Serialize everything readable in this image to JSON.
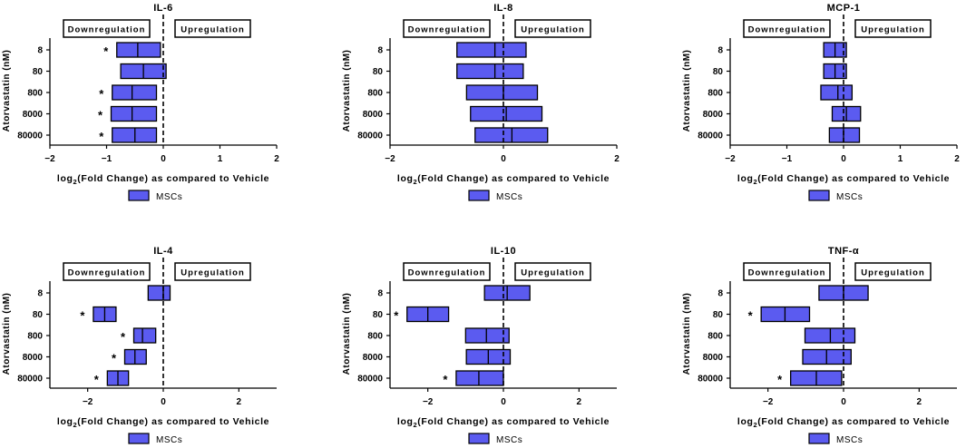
{
  "figure": {
    "colors": {
      "bar_fill": "#5b5bf0",
      "bar_stroke": "#000000",
      "background": "#ffffff"
    }
  },
  "chart_data": [
    {
      "type": "bar",
      "orientation": "horizontal-floating",
      "title": "IL-6",
      "xlabel_main": "log",
      "xlabel_sub": "2",
      "xlabel_rest": "(Fold Change) as compared to Vehicle",
      "ylabel": "Atorvastatin (nM)",
      "categories": [
        "8",
        "80",
        "800",
        "8000",
        "80000"
      ],
      "series": [
        {
          "name": "MSCs",
          "min": [
            -0.82,
            -0.75,
            -0.9,
            -0.92,
            -0.9
          ],
          "mean": [
            -0.45,
            -0.35,
            -0.55,
            -0.55,
            -0.5
          ],
          "max": [
            -0.05,
            0.05,
            -0.12,
            -0.12,
            -0.12
          ]
        }
      ],
      "significant": [
        true,
        false,
        true,
        true,
        true
      ],
      "xlim": [
        -2,
        2
      ],
      "xticks": [
        "-2",
        "-1",
        "0",
        "1",
        "2"
      ],
      "down_label": "Downregulation",
      "up_label": "Upregulation",
      "star": "*",
      "legend": "MSCs"
    },
    {
      "type": "bar",
      "orientation": "horizontal-floating",
      "title": "IL-8",
      "xlabel_main": "log",
      "xlabel_sub": "2",
      "xlabel_rest": "(Fold Change) as compared to Vehicle",
      "ylabel": "Atorvastatin (nM)",
      "categories": [
        "8",
        "80",
        "800",
        "8000",
        "80000"
      ],
      "series": [
        {
          "name": "MSCs",
          "min": [
            -0.82,
            -0.82,
            -0.65,
            -0.58,
            -0.5
          ],
          "mean": [
            -0.15,
            -0.15,
            0.0,
            0.05,
            0.15
          ],
          "max": [
            0.4,
            0.35,
            0.6,
            0.68,
            0.78
          ]
        }
      ],
      "significant": [
        false,
        false,
        false,
        false,
        false
      ],
      "xlim": [
        -2,
        2
      ],
      "xticks": [
        "-2",
        "0",
        "2"
      ],
      "down_label": "Downregulation",
      "up_label": "Upregulation",
      "star": "*",
      "legend": "MSCs"
    },
    {
      "type": "bar",
      "orientation": "horizontal-floating",
      "title": "MCP-1",
      "xlabel_main": "log",
      "xlabel_sub": "2",
      "xlabel_rest": "(Fold Change) as compared to Vehicle",
      "ylabel": "Atorvastatin (nM)",
      "categories": [
        "8",
        "80",
        "800",
        "8000",
        "80000"
      ],
      "series": [
        {
          "name": "MSCs",
          "min": [
            -0.35,
            -0.35,
            -0.4,
            -0.2,
            -0.25
          ],
          "mean": [
            -0.15,
            -0.15,
            -0.1,
            0.05,
            0.0
          ],
          "max": [
            0.05,
            0.05,
            0.15,
            0.3,
            0.28
          ]
        }
      ],
      "significant": [
        false,
        false,
        false,
        false,
        false
      ],
      "xlim": [
        -2,
        2
      ],
      "xticks": [
        "-2",
        "-1",
        "0",
        "1",
        "2"
      ],
      "down_label": "Downregulation",
      "up_label": "Upregulation",
      "star": "*",
      "legend": "MSCs"
    },
    {
      "type": "bar",
      "orientation": "horizontal-floating",
      "title": "IL-4",
      "xlabel_main": "log",
      "xlabel_sub": "2",
      "xlabel_rest": "(Fold Change) as compared to Vehicle",
      "ylabel": "Atorvastatin (nM)",
      "categories": [
        "8",
        "80",
        "800",
        "8000",
        "80000"
      ],
      "series": [
        {
          "name": "MSCs",
          "min": [
            -0.4,
            -1.85,
            -0.78,
            -1.02,
            -1.48
          ],
          "mean": [
            0.0,
            -1.55,
            -0.55,
            -0.75,
            -1.2
          ],
          "max": [
            0.18,
            -1.25,
            -0.2,
            -0.45,
            -0.92
          ]
        }
      ],
      "significant": [
        false,
        true,
        true,
        true,
        true
      ],
      "xlim": [
        -3,
        3
      ],
      "xticks": [
        "-2",
        "0",
        "2"
      ],
      "down_label": "Downregulation",
      "up_label": "Upregulation",
      "star": "*",
      "legend": "MSCs"
    },
    {
      "type": "bar",
      "orientation": "horizontal-floating",
      "title": "IL-10",
      "xlabel_main": "log",
      "xlabel_sub": "2",
      "xlabel_rest": "(Fold Change) as compared to Vehicle",
      "ylabel": "Atorvastatin (nM)",
      "categories": [
        "8",
        "80",
        "800",
        "8000",
        "80000"
      ],
      "series": [
        {
          "name": "MSCs",
          "min": [
            -0.5,
            -2.55,
            -1.0,
            -0.98,
            -1.25
          ],
          "mean": [
            0.1,
            -2.0,
            -0.45,
            -0.4,
            -0.65
          ],
          "max": [
            0.7,
            -1.45,
            0.15,
            0.18,
            0.0
          ]
        }
      ],
      "significant": [
        false,
        true,
        false,
        false,
        true
      ],
      "xlim": [
        -3,
        3
      ],
      "xticks": [
        "-2",
        "0",
        "2"
      ],
      "down_label": "Downregulation",
      "up_label": "Upregulation",
      "star": "*",
      "legend": "MSCs"
    },
    {
      "type": "bar",
      "orientation": "horizontal-floating",
      "title": "TNF-α",
      "xlabel_main": "log",
      "xlabel_sub": "2",
      "xlabel_rest": "(Fold Change) as compared to Vehicle",
      "ylabel": "Atorvastatin (nM)",
      "categories": [
        "8",
        "80",
        "800",
        "8000",
        "80000"
      ],
      "series": [
        {
          "name": "MSCs",
          "min": [
            -0.65,
            -2.18,
            -1.02,
            -1.08,
            -1.4
          ],
          "mean": [
            0.0,
            -1.55,
            -0.35,
            -0.45,
            -0.72
          ],
          "max": [
            0.65,
            -0.9,
            0.3,
            0.2,
            -0.05
          ]
        }
      ],
      "significant": [
        false,
        true,
        false,
        false,
        true
      ],
      "xlim": [
        -3,
        3
      ],
      "xticks": [
        "-2",
        "0",
        "2"
      ],
      "down_label": "Downregulation",
      "up_label": "Upregulation",
      "star": "*",
      "legend": "MSCs"
    }
  ]
}
